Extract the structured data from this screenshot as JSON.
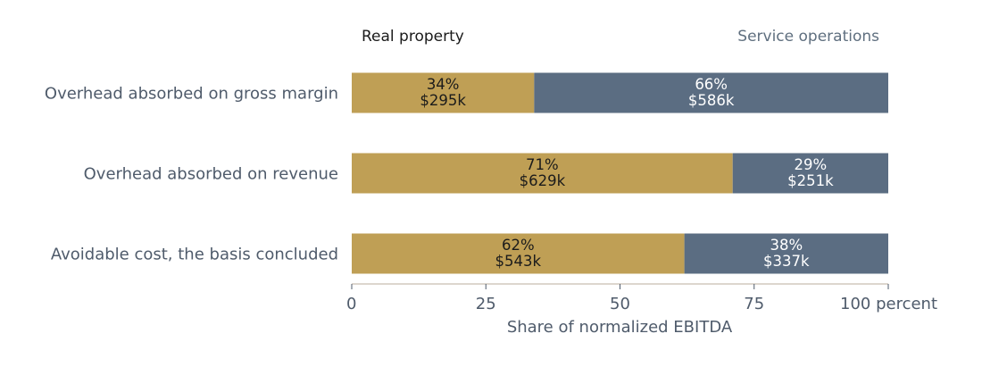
{
  "chart_data": {
    "type": "bar",
    "orientation": "horizontal",
    "stacked": true,
    "normalized": true,
    "categories": [
      "Overhead absorbed on gross margin",
      "Overhead absorbed on revenue",
      "Avoidable cost, the basis concluded"
    ],
    "series": [
      {
        "name": "Real property",
        "color": "#bf9f55",
        "label_color": "#1b1b1b",
        "values": [
          34,
          71,
          62
        ],
        "pct_labels": [
          "34%",
          "71%",
          "62%"
        ],
        "amount_labels": [
          "$295k",
          "$629k",
          "$543k"
        ]
      },
      {
        "name": "Service operations",
        "color": "#5b6d82",
        "label_color": "#ffffff",
        "values": [
          66,
          29,
          38
        ],
        "pct_labels": [
          "66%",
          "29%",
          "38%"
        ],
        "amount_labels": [
          "$586k",
          "$251k",
          "$337k"
        ]
      }
    ],
    "xlabel": "Share of normalized EBITDA",
    "xlim": [
      0,
      100
    ],
    "xticks": [
      0,
      25,
      50,
      75,
      100
    ],
    "xtick_labels": [
      "0",
      "25",
      "50",
      "75",
      "100 percent"
    ],
    "legend_placement": "top",
    "legend_colors": [
      "#1b1b1b",
      "#5f6f7f"
    ],
    "grid": false
  }
}
